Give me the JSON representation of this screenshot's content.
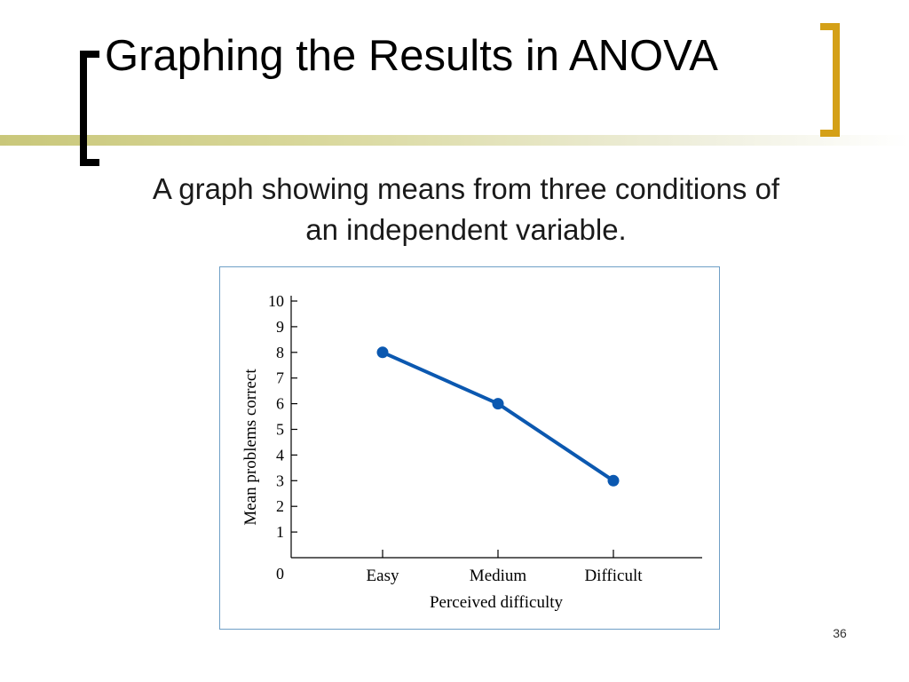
{
  "slide": {
    "title": "Graphing the Results in ANOVA",
    "subtitle": "A graph showing means from three conditions of an independent variable.",
    "page_number": "36",
    "colors": {
      "left_bracket": "#000000",
      "right_bracket": "#d4a017",
      "title_band": "#c9c77a",
      "chart_border": "#6f9fc6"
    }
  },
  "chart_data": {
    "type": "line",
    "categories": [
      "Easy",
      "Medium",
      "Difficult"
    ],
    "series": [
      {
        "values": [
          8,
          6,
          3
        ],
        "color": "#0b58b0"
      }
    ],
    "xlabel": "Perceived difficulty",
    "ylabel": "Mean problems correct",
    "ylim": [
      0,
      10
    ],
    "yticks": [
      "0",
      "1",
      "2",
      "3",
      "4",
      "5",
      "6",
      "7",
      "8",
      "9",
      "10"
    ],
    "grid": false,
    "legend": "none"
  }
}
